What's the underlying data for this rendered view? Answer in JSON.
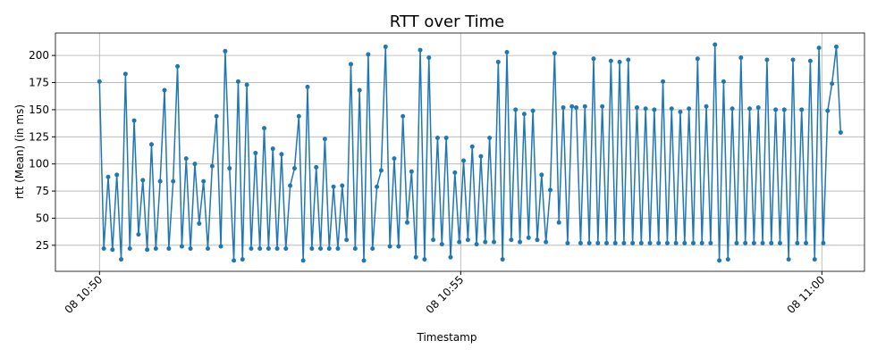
{
  "chart_data": {
    "type": "line",
    "title": "RTT over Time",
    "xlabel": "Timestamp",
    "ylabel": "rtt (Mean) (in ms)",
    "x": [
      50.0,
      50.06,
      50.12,
      50.18,
      50.24,
      50.3,
      50.36,
      50.42,
      50.48,
      50.54,
      50.6,
      50.66,
      50.72,
      50.78,
      50.84,
      50.9,
      50.96,
      51.02,
      51.08,
      51.14,
      51.2,
      51.26,
      51.32,
      51.38,
      51.44,
      51.5,
      51.56,
      51.62,
      51.68,
      51.74,
      51.8,
      51.86,
      51.92,
      51.98,
      52.04,
      52.1,
      52.16,
      52.22,
      52.28,
      52.34,
      52.4,
      52.46,
      52.52,
      52.58,
      52.64,
      52.7,
      52.76,
      52.82,
      52.88,
      52.94,
      53.0,
      53.06,
      53.12,
      53.18,
      53.24,
      53.3,
      53.36,
      53.42,
      53.48,
      53.54,
      53.6,
      53.66,
      53.72,
      53.78,
      53.84,
      53.9,
      53.96,
      54.02,
      54.08,
      54.14,
      54.2,
      54.26,
      54.32,
      54.38,
      54.44,
      54.5,
      54.56,
      54.62,
      54.68,
      54.74,
      54.8,
      54.86,
      54.92,
      54.98,
      55.04,
      55.1,
      55.16,
      55.22,
      55.28,
      55.34,
      55.4,
      55.46,
      55.52,
      55.58,
      55.64,
      55.7,
      55.76,
      55.82,
      55.88,
      55.94,
      56.0,
      56.06,
      56.12,
      56.18,
      56.24,
      56.3,
      56.36,
      56.42,
      56.48,
      56.54,
      56.6,
      56.66,
      56.72,
      56.78,
      56.84,
      56.9,
      56.96,
      57.02,
      57.08,
      57.14,
      57.2,
      57.26,
      57.32,
      57.38,
      57.44,
      57.5,
      57.56,
      57.62,
      57.68,
      57.74,
      57.8,
      57.86,
      57.92,
      57.98,
      58.04,
      58.1,
      58.16,
      58.22,
      58.28,
      58.34,
      58.4,
      58.46,
      58.52,
      58.58,
      58.64,
      58.7,
      58.76,
      58.82,
      58.88,
      58.94,
      59.0,
      59.06,
      59.12,
      59.18,
      59.24,
      59.3,
      59.36,
      59.42,
      59.48,
      59.54,
      59.6,
      59.66,
      59.72,
      59.78,
      59.84,
      59.9,
      59.96,
      60.02,
      60.08,
      60.14,
      60.2,
      60.26
    ],
    "values": [
      176,
      22,
      88,
      21,
      90,
      12,
      183,
      22,
      140,
      35,
      85,
      21,
      118,
      22,
      84,
      168,
      22,
      84,
      190,
      24,
      105,
      22,
      100,
      45,
      84,
      22,
      98,
      144,
      24,
      204,
      96,
      11,
      176,
      12,
      173,
      22,
      110,
      22,
      133,
      22,
      114,
      22,
      109,
      22,
      80,
      96,
      144,
      11,
      171,
      22,
      97,
      22,
      123,
      22,
      79,
      22,
      80,
      30,
      192,
      22,
      168,
      11,
      201,
      22,
      79,
      94,
      208,
      24,
      105,
      24,
      144,
      46,
      93,
      14,
      205,
      12,
      198,
      30,
      124,
      26,
      124,
      14,
      92,
      28,
      103,
      30,
      116,
      26,
      107,
      28,
      124,
      28,
      194,
      12,
      203,
      30,
      150,
      28,
      146,
      32,
      149,
      30,
      90,
      28,
      76,
      202,
      46,
      152,
      27,
      153,
      152,
      27,
      153,
      27,
      197,
      27,
      153,
      27,
      195,
      27,
      194,
      27,
      196,
      27,
      152,
      27,
      151,
      27,
      150,
      27,
      176,
      27,
      151,
      27,
      148,
      27,
      151,
      27,
      197,
      27,
      153,
      27,
      210,
      11,
      176,
      12,
      151,
      27,
      198,
      27,
      151,
      27,
      152,
      27,
      196,
      27,
      150,
      27,
      150,
      12,
      196,
      27,
      150,
      27,
      195,
      12,
      207,
      27,
      149,
      174,
      208,
      129
    ],
    "color": "#1f77b4",
    "xlim": [
      49.39,
      60.59
    ],
    "xticks": [
      {
        "value": 50,
        "label": "08 10:50"
      },
      {
        "value": 55,
        "label": "08 10:55"
      },
      {
        "value": 60,
        "label": "08 11:00"
      }
    ],
    "ylim": [
      1,
      220.7
    ],
    "yticks": [
      25,
      50,
      75,
      100,
      125,
      150,
      175,
      200
    ],
    "grid": true
  }
}
